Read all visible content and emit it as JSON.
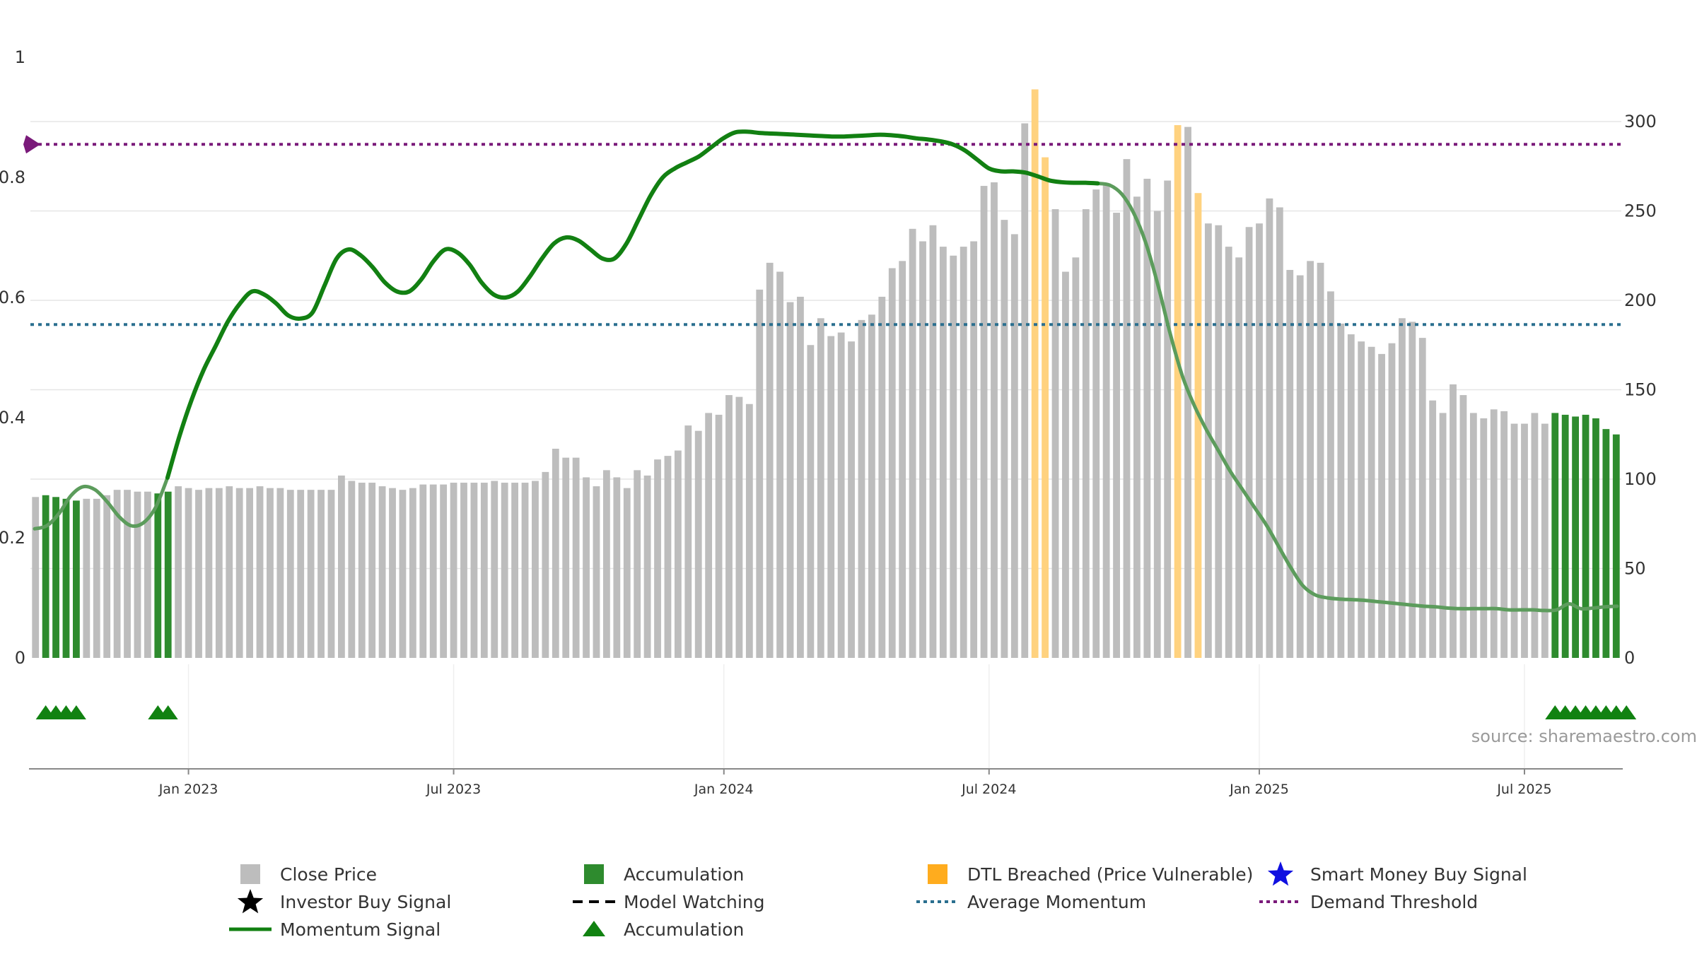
{
  "chart_data": {
    "type": "bar+line",
    "title": "",
    "source_label": "source: sharemaestro.com",
    "left_axis": {
      "ticks": [
        "0",
        "0.2",
        "0.4",
        "0.6",
        "0.8",
        "1"
      ],
      "ylim": [
        0,
        1
      ]
    },
    "right_axis": {
      "ticks": [
        "0",
        "50",
        "100",
        "150",
        "200",
        "250",
        "300"
      ],
      "ylim": [
        0,
        336
      ]
    },
    "x_ticks": [
      {
        "label": "Jan 2023",
        "week": 15.5
      },
      {
        "label": "Jul 2023",
        "week": 41.5
      },
      {
        "label": "Jan 2024",
        "week": 68
      },
      {
        "label": "Jul 2024",
        "week": 94
      },
      {
        "label": "Jan 2025",
        "week": 120.5
      },
      {
        "label": "Jul 2025",
        "week": 146.5
      }
    ],
    "close_prices": [
      90,
      91,
      90,
      89,
      88,
      89,
      89,
      91,
      94,
      94,
      93,
      93,
      92,
      93,
      96,
      95,
      94,
      95,
      95,
      96,
      95,
      95,
      96,
      95,
      95,
      94,
      94,
      94,
      94,
      94,
      102,
      99,
      98,
      98,
      96,
      95,
      94,
      95,
      97,
      97,
      97,
      98,
      98,
      98,
      98,
      99,
      98,
      98,
      98,
      99,
      104,
      117,
      112,
      112,
      101,
      96,
      105,
      101,
      95,
      105,
      102,
      111,
      113,
      116,
      130,
      127,
      137,
      136,
      147,
      146,
      142,
      206,
      221,
      216,
      199,
      202,
      175,
      190,
      180,
      182,
      177,
      189,
      192,
      202,
      218,
      222,
      240,
      233,
      242,
      230,
      225,
      230,
      233,
      264,
      266,
      245,
      237,
      299,
      318,
      280,
      251,
      216,
      224,
      251,
      262,
      265,
      249,
      279,
      258,
      268,
      250,
      267,
      298,
      297,
      260,
      243,
      242,
      230,
      224,
      241,
      243,
      257,
      252,
      217,
      214,
      222,
      221,
      205,
      187,
      181,
      177,
      174,
      170,
      176,
      190,
      188,
      179,
      144,
      137,
      153,
      147,
      137,
      134,
      139,
      138,
      131,
      131,
      137,
      131,
      137,
      136,
      135,
      136,
      134,
      128,
      125
    ],
    "bar_colors": "AAAAGGGGGGGGGGGGGGGGGGGGGGGGGGGGGGGGGGGGGGGGGGGGGGGGGGGGGGGGGGGGGGGGGGGGGGGGGGGGGGGGGGGGGGGGGGGGGGGGGGGGGOOGGGGGGGGGGGGGGOGOGGGGGGGGGGGGGGGGGGGGGGGGGGGGGGGGGGGGAAAAGAAA",
    "bar_colors_note_skip": true,
    "momentum": [
      0.215,
      0.22,
      0.24,
      0.27,
      0.285,
      0.28,
      0.26,
      0.235,
      0.22,
      0.225,
      0.25,
      0.3,
      0.37,
      0.43,
      0.48,
      0.52,
      0.56,
      0.59,
      0.61,
      0.605,
      0.59,
      0.57,
      0.565,
      0.575,
      0.62,
      0.665,
      0.68,
      0.67,
      0.65,
      0.625,
      0.61,
      0.61,
      0.63,
      0.66,
      0.68,
      0.675,
      0.655,
      0.625,
      0.605,
      0.6,
      0.61,
      0.635,
      0.665,
      0.69,
      0.7,
      0.695,
      0.68,
      0.665,
      0.665,
      0.69,
      0.73,
      0.77,
      0.8,
      0.815,
      0.825,
      0.835,
      0.85,
      0.865,
      0.875,
      0.876,
      0.874,
      0.873,
      0.872,
      0.871,
      0.87,
      0.869,
      0.868,
      0.868,
      0.869,
      0.87,
      0.871,
      0.87,
      0.868,
      0.865,
      0.863,
      0.86,
      0.855,
      0.845,
      0.83,
      0.815,
      0.81,
      0.81,
      0.808,
      0.802,
      0.795,
      0.792,
      0.791,
      0.791,
      0.79,
      0.787,
      0.772,
      0.74,
      0.69,
      0.62,
      0.54,
      0.47,
      0.42,
      0.38,
      0.345,
      0.31,
      0.28,
      0.25,
      0.22,
      0.185,
      0.15,
      0.12,
      0.105,
      0.1,
      0.098,
      0.097,
      0.096,
      0.094,
      0.092,
      0.09,
      0.088,
      0.086,
      0.085,
      0.083,
      0.082,
      0.082,
      0.082,
      0.082,
      0.08,
      0.08,
      0.08,
      0.079,
      0.08,
      0.09,
      0.082,
      0.083,
      0.085,
      0.086
    ],
    "momentum_solid_range": [
      11,
      88
    ],
    "average_momentum": 0.555,
    "demand_threshold": 0.855,
    "accumulation_markers": [
      0,
      1,
      2,
      3,
      11,
      12,
      148,
      149,
      150,
      151,
      152,
      153,
      154,
      155
    ],
    "legend": [
      {
        "key": "close",
        "label": "Close Price"
      },
      {
        "key": "accum_sq",
        "label": "Accumulation"
      },
      {
        "key": "dtl",
        "label": "DTL Breached (Price Vulnerable)"
      },
      {
        "key": "smart",
        "label": "Smart Money Buy Signal"
      },
      {
        "key": "investor",
        "label": "Investor Buy Signal"
      },
      {
        "key": "watch",
        "label": "Model Watching"
      },
      {
        "key": "avg",
        "label": "Average Momentum"
      },
      {
        "key": "demand",
        "label": "Demand Threshold"
      },
      {
        "key": "momentum",
        "label": "Momentum Signal"
      },
      {
        "key": "accum_tri",
        "label": "Accumulation"
      }
    ]
  },
  "colors": {
    "close": "#bdbdbd",
    "accumulation": "#2e8b2e",
    "dtl": "#ffd27f",
    "momentum": "#128012",
    "average": "#2a6f8f",
    "demand": "#7a1a7a",
    "smart": "#1010e0",
    "investor": "#000000",
    "grid": "#e6e6e6",
    "axis": "#888888"
  }
}
